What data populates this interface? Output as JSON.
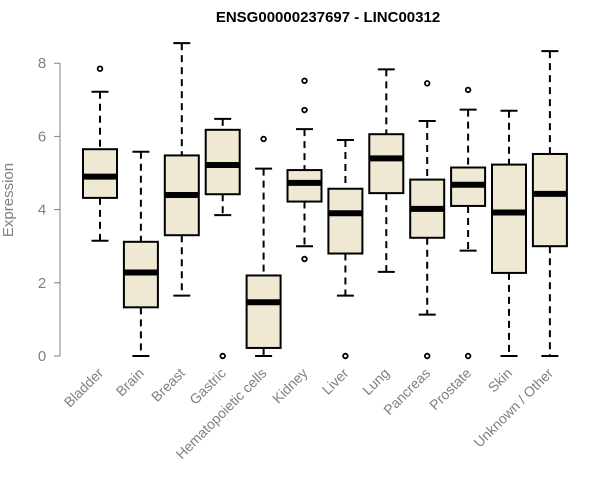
{
  "chart_data": {
    "type": "box",
    "title": "ENSG00000237697 - LINC00312",
    "xlabel": "",
    "ylabel": "Expression",
    "ylim": [
      0,
      8.6
    ],
    "yticks": [
      "0",
      "2",
      "4",
      "6",
      "8"
    ],
    "box_fill": "#efe9d3",
    "categories": [
      "Bladder",
      "Brain",
      "Breast",
      "Gastric",
      "Hematopoietic cells",
      "Kidney",
      "Liver",
      "Lung",
      "Pancreas",
      "Prostate",
      "Skin",
      "Unknown / Other"
    ],
    "boxes": [
      {
        "whisker_low": 3.15,
        "q1": 4.32,
        "median": 4.9,
        "q3": 5.65,
        "whisker_high": 7.22,
        "outliers": [
          7.85
        ]
      },
      {
        "whisker_low": 0.0,
        "q1": 1.33,
        "median": 2.28,
        "q3": 3.12,
        "whisker_high": 5.58,
        "outliers": []
      },
      {
        "whisker_low": 1.65,
        "q1": 3.3,
        "median": 4.4,
        "q3": 5.48,
        "whisker_high": 8.55,
        "outliers": []
      },
      {
        "whisker_low": 3.85,
        "q1": 4.42,
        "median": 5.22,
        "q3": 6.18,
        "whisker_high": 6.48,
        "outliers": [
          0.0
        ]
      },
      {
        "whisker_low": 0.0,
        "q1": 0.22,
        "median": 1.47,
        "q3": 2.2,
        "whisker_high": 5.12,
        "outliers": [
          5.93
        ]
      },
      {
        "whisker_low": 3.0,
        "q1": 4.22,
        "median": 4.73,
        "q3": 5.08,
        "whisker_high": 6.2,
        "outliers": [
          2.65,
          6.72,
          7.52
        ]
      },
      {
        "whisker_low": 1.65,
        "q1": 2.8,
        "median": 3.9,
        "q3": 4.57,
        "whisker_high": 5.9,
        "outliers": [
          0.0
        ]
      },
      {
        "whisker_low": 2.3,
        "q1": 4.45,
        "median": 5.4,
        "q3": 6.06,
        "whisker_high": 7.83,
        "outliers": []
      },
      {
        "whisker_low": 1.13,
        "q1": 3.23,
        "median": 4.02,
        "q3": 4.82,
        "whisker_high": 6.42,
        "outliers": [
          0.0,
          7.45
        ]
      },
      {
        "whisker_low": 2.88,
        "q1": 4.1,
        "median": 4.68,
        "q3": 5.15,
        "whisker_high": 6.73,
        "outliers": [
          0.0,
          7.27
        ]
      },
      {
        "whisker_low": 0.0,
        "q1": 2.27,
        "median": 3.92,
        "q3": 5.23,
        "whisker_high": 6.7,
        "outliers": []
      },
      {
        "whisker_low": 0.0,
        "q1": 3.0,
        "median": 4.43,
        "q3": 5.52,
        "whisker_high": 8.33,
        "outliers": []
      }
    ]
  }
}
